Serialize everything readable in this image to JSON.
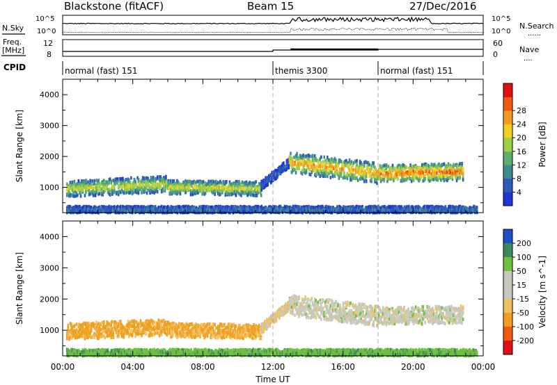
{
  "header": {
    "station": "Blackstone (fitACF)",
    "beam": "Beam 15",
    "date": "27/Dec/2016"
  },
  "strip_labels": {
    "nsky": "N.Sky",
    "nsearch": "N.Search",
    "freq_line1": "Freq.",
    "freq_line2": "[MHz]",
    "nave": "Nave",
    "cpid": "CPID",
    "nsky_hi": "10^5",
    "nsky_lo": "10^0",
    "nsearch_hi": "10^5",
    "nsearch_lo": "10^0",
    "freq_hi": "12",
    "freq_lo": "8",
    "nave_hi": "60",
    "nave_lo": "0",
    "dots": "......",
    "dots_short": "...."
  },
  "cpid_segments": [
    {
      "label": "normal (fast) 151",
      "start_h": 0
    },
    {
      "label": "themis 3300",
      "start_h": 12
    },
    {
      "label": "normal (fast) 151",
      "start_h": 18
    }
  ],
  "time_ticks": [
    "00:00",
    "04:00",
    "08:00",
    "12:00",
    "16:00",
    "20:00",
    "00:00"
  ],
  "xlabel": "Time UT",
  "colors": {
    "power": [
      "#1f35d6",
      "#2c5cb8",
      "#3f8a8f",
      "#5fae6a",
      "#9fcf4a",
      "#f0d020",
      "#f39a20",
      "#f05a10",
      "#e01010"
    ],
    "velocity": [
      "#e01010",
      "#f05a10",
      "#f0a020",
      "#f0c060",
      "#c8c8bc",
      "#c8c8bc",
      "#70c040",
      "#3e8a5e",
      "#2050c8"
    ]
  },
  "chart_data": [
    {
      "type": "heatmap",
      "panel": "power",
      "xlabel": "Time UT",
      "ylabel": "Slant Range [km]",
      "yticks": [
        1000,
        2000,
        3000,
        4000
      ],
      "colorbar_label": "Power [dB]",
      "colorbar_ticks": [
        4,
        8,
        12,
        16,
        20,
        24,
        28
      ],
      "xlim_hours": [
        0,
        24
      ],
      "ylim_km": [
        180,
        4500
      ],
      "bands": [
        {
          "t0": 0.2,
          "t1": 6.0,
          "center0": 950,
          "center1": 1100,
          "width": 520,
          "peak": 17
        },
        {
          "t0": 6.0,
          "t1": 11.3,
          "center0": 1000,
          "center1": 950,
          "width": 450,
          "peak": 18
        },
        {
          "t0": 11.3,
          "t1": 12.9,
          "center0": 1050,
          "center1": 1800,
          "width": 300,
          "peak": 6
        },
        {
          "t0": 12.9,
          "t1": 18.0,
          "center0": 1800,
          "center1": 1450,
          "width": 650,
          "peak": 22
        },
        {
          "t0": 18.0,
          "t1": 22.8,
          "center0": 1450,
          "center1": 1500,
          "width": 550,
          "peak": 25
        },
        {
          "t0": 0.2,
          "t1": 23.6,
          "center0": 280,
          "center1": 280,
          "width": 200,
          "peak": 8
        }
      ]
    },
    {
      "type": "heatmap",
      "panel": "velocity",
      "xlabel": "Time UT",
      "ylabel": "Slant Range [km]",
      "yticks": [
        1000,
        2000,
        3000,
        4000
      ],
      "colorbar_label": "Velocity [m s^-1]",
      "colorbar_ticks": [
        200,
        100,
        50,
        15,
        -15,
        -50,
        -100,
        -200
      ],
      "xlim_hours": [
        0,
        24
      ],
      "ylim_km": [
        180,
        4500
      ],
      "bands": [
        {
          "t0": 0.2,
          "t1": 6.0,
          "center0": 950,
          "center1": 1100,
          "width": 520,
          "velocity": -60
        },
        {
          "t0": 6.0,
          "t1": 11.3,
          "center0": 1000,
          "center1": 950,
          "width": 450,
          "velocity": -55
        },
        {
          "t0": 11.3,
          "t1": 12.9,
          "center0": 1050,
          "center1": 1800,
          "width": 300,
          "velocity": -20
        },
        {
          "t0": 12.9,
          "t1": 18.0,
          "center0": 1800,
          "center1": 1450,
          "width": 650,
          "velocity": 0
        },
        {
          "t0": 18.0,
          "t1": 22.8,
          "center0": 1450,
          "center1": 1500,
          "width": 550,
          "velocity": 0
        },
        {
          "t0": 0.2,
          "t1": 23.6,
          "center0": 280,
          "center1": 280,
          "width": 200,
          "velocity": 40
        }
      ]
    }
  ]
}
